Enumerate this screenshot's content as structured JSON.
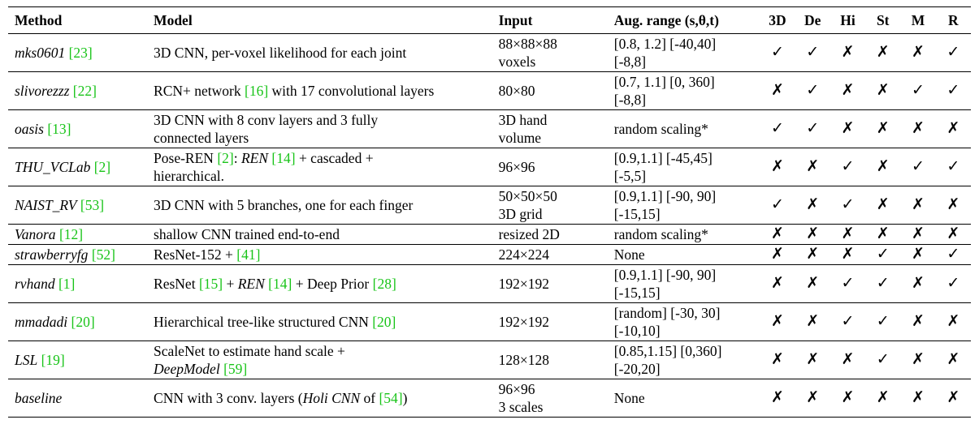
{
  "headers": {
    "method": "Method",
    "model": "Model",
    "input": "Input",
    "aug": "Aug. range (s,θ,t)",
    "flags": [
      "3D",
      "De",
      "Hi",
      "St",
      "M",
      "R"
    ]
  },
  "glyphs": {
    "yes": "✓",
    "no": "✗"
  },
  "rows": [
    {
      "name": "mks0601",
      "ref": "[23]",
      "model": [
        {
          "t": "3D CNN, per-voxel likelihood for each joint"
        }
      ],
      "input": [
        "88×88×88",
        "voxels"
      ],
      "aug": [
        "[0.8, 1.2] [-40,40]",
        "[-8,8]"
      ],
      "flags": [
        true,
        true,
        false,
        false,
        false,
        true
      ]
    },
    {
      "name": "slivorezzz",
      "ref": "[22]",
      "model": [
        {
          "t": "RCN+ network "
        },
        {
          "t": "[16]",
          "c": true
        },
        {
          "t": " with 17 convolutional layers"
        }
      ],
      "input": [
        "80×80"
      ],
      "aug": [
        "[0.7, 1.1] [0, 360]",
        "[-8,8]"
      ],
      "flags": [
        false,
        true,
        false,
        false,
        true,
        true
      ]
    },
    {
      "name": "oasis",
      "ref": "[13]",
      "model": [
        {
          "t": "3D CNN with 8 conv layers and 3 fully"
        },
        {
          "br": true
        },
        {
          "t": "connected layers"
        }
      ],
      "input": [
        "3D hand",
        "volume"
      ],
      "aug": [
        "random scaling*"
      ],
      "flags": [
        true,
        true,
        false,
        false,
        false,
        false
      ]
    },
    {
      "name": "THU_VCLab",
      "ref": "[2]",
      "model": [
        {
          "t": "Pose-REN "
        },
        {
          "t": "[2]",
          "c": true
        },
        {
          "t": ": "
        },
        {
          "t": "REN",
          "i": true
        },
        {
          "t": " "
        },
        {
          "t": "[14]",
          "c": true
        },
        {
          "t": " + cascaded +"
        },
        {
          "br": true
        },
        {
          "t": "hierarchical."
        }
      ],
      "input": [
        "96×96"
      ],
      "aug": [
        "[0.9,1.1] [-45,45]",
        "[-5,5]"
      ],
      "flags": [
        false,
        false,
        true,
        false,
        true,
        true
      ]
    },
    {
      "name": "NAIST_RV",
      "ref": "[53]",
      "model": [
        {
          "t": "3D CNN with 5 branches, one for each finger"
        }
      ],
      "input": [
        "50×50×50",
        "3D grid"
      ],
      "aug": [
        "[0.9,1.1] [-90, 90]",
        "[-15,15]"
      ],
      "flags": [
        true,
        false,
        true,
        false,
        false,
        false
      ]
    },
    {
      "name": "Vanora",
      "ref": "[12]",
      "model": [
        {
          "t": "shallow CNN trained end-to-end"
        }
      ],
      "input": [
        "resized 2D"
      ],
      "aug": [
        "random scaling*"
      ],
      "flags": [
        false,
        false,
        false,
        false,
        false,
        false
      ]
    },
    {
      "name": "strawberryfg",
      "ref": "[52]",
      "model": [
        {
          "t": "ResNet-152 + "
        },
        {
          "t": "[41]",
          "c": true
        }
      ],
      "input": [
        "224×224"
      ],
      "aug": [
        "None"
      ],
      "flags": [
        false,
        false,
        false,
        true,
        false,
        true
      ]
    },
    {
      "name": "rvhand",
      "ref": "[1]",
      "model": [
        {
          "t": "ResNet "
        },
        {
          "t": "[15]",
          "c": true
        },
        {
          "t": " + "
        },
        {
          "t": "REN",
          "i": true
        },
        {
          "t": " "
        },
        {
          "t": "[14]",
          "c": true
        },
        {
          "t": " + Deep Prior "
        },
        {
          "t": "[28]",
          "c": true
        }
      ],
      "input": [
        "192×192"
      ],
      "aug": [
        "[0.9,1.1] [-90, 90]",
        "[-15,15]"
      ],
      "flags": [
        false,
        false,
        true,
        true,
        false,
        true
      ]
    },
    {
      "name": "mmadadi",
      "ref": "[20]",
      "model": [
        {
          "t": "Hierarchical tree-like structured CNN "
        },
        {
          "t": "[20]",
          "c": true
        }
      ],
      "input": [
        "192×192"
      ],
      "aug": [
        "[random] [-30, 30]",
        "[-10,10]"
      ],
      "flags": [
        false,
        false,
        true,
        true,
        false,
        false
      ]
    },
    {
      "name": "LSL",
      "ref": "[19]",
      "model": [
        {
          "t": "ScaleNet to estimate hand scale +"
        },
        {
          "br": true
        },
        {
          "t": "DeepModel",
          "i": true
        },
        {
          "t": " "
        },
        {
          "t": "[59]",
          "c": true
        }
      ],
      "input": [
        "128×128"
      ],
      "aug": [
        "[0.85,1.15] [0,360]",
        "[-20,20]"
      ],
      "flags": [
        false,
        false,
        false,
        true,
        false,
        false
      ]
    },
    {
      "name": "baseline",
      "ref": "",
      "model": [
        {
          "t": "CNN with 3 conv. layers ("
        },
        {
          "t": "Holi CNN",
          "i": true
        },
        {
          "t": " of "
        },
        {
          "t": "[54]",
          "c": true
        },
        {
          "t": ")"
        }
      ],
      "input": [
        "96×96",
        "3 scales"
      ],
      "aug": [
        "None"
      ],
      "flags": [
        false,
        false,
        false,
        false,
        false,
        false
      ]
    }
  ]
}
